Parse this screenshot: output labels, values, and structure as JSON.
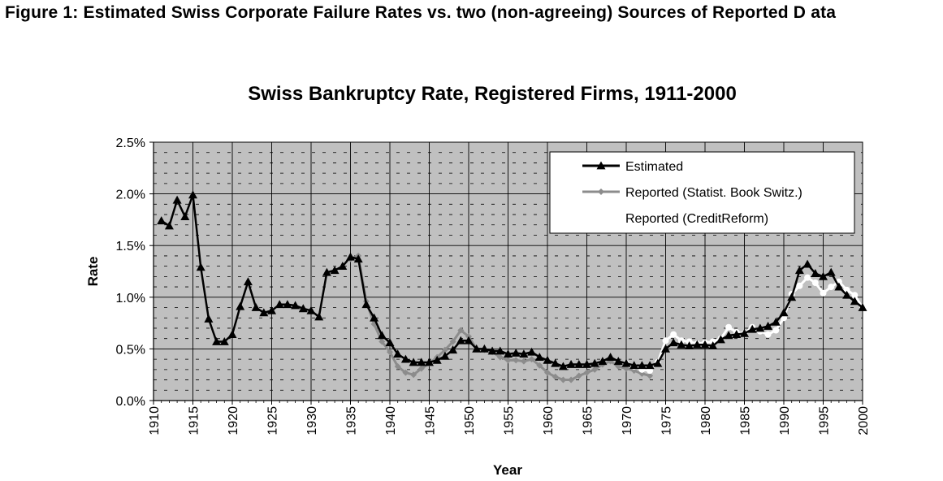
{
  "figure_caption": "Figure 1: Estimated Swiss Corporate Failure Rates vs. two (non-agreeing) Sources of Reported D ata",
  "chart_data": {
    "type": "line",
    "title": "Swiss Bankruptcy Rate, Registered Firms, 1911-2000",
    "xlabel": "Year",
    "ylabel": "Rate",
    "xlim": [
      1910,
      2000
    ],
    "ylim": [
      0,
      0.025
    ],
    "x_ticks": [
      "1910",
      "1915",
      "1920",
      "1925",
      "1930",
      "1935",
      "1940",
      "1945",
      "1950",
      "1955",
      "1960",
      "1965",
      "1970",
      "1975",
      "1980",
      "1985",
      "1990",
      "1995",
      "2000"
    ],
    "y_ticks": [
      "0.0%",
      "0.5%",
      "1.0%",
      "1.5%",
      "2.0%",
      "2.5%"
    ],
    "grid": true,
    "plot_background": "#c0c0c0",
    "legend_position": "top-right",
    "series": [
      {
        "name": "Estimated",
        "color": "#000000",
        "marker": "triangle",
        "x": [
          1911,
          1912,
          1913,
          1914,
          1915,
          1916,
          1917,
          1918,
          1919,
          1920,
          1921,
          1922,
          1923,
          1924,
          1925,
          1926,
          1927,
          1928,
          1929,
          1930,
          1931,
          1932,
          1933,
          1934,
          1935,
          1936,
          1937,
          1938,
          1939,
          1940,
          1941,
          1942,
          1943,
          1944,
          1945,
          1946,
          1947,
          1948,
          1949,
          1950,
          1951,
          1952,
          1953,
          1954,
          1955,
          1956,
          1957,
          1958,
          1959,
          1960,
          1961,
          1962,
          1963,
          1964,
          1965,
          1966,
          1967,
          1968,
          1969,
          1970,
          1971,
          1972,
          1973,
          1974,
          1975,
          1976,
          1977,
          1978,
          1979,
          1980,
          1981,
          1982,
          1983,
          1984,
          1985,
          1986,
          1987,
          1988,
          1989,
          1990,
          1991,
          1992,
          1993,
          1994,
          1995,
          1996,
          1997,
          1998,
          1999,
          2000
        ],
        "values": [
          0.0174,
          0.0169,
          0.0194,
          0.0178,
          0.0199,
          0.0129,
          0.0079,
          0.0057,
          0.0057,
          0.0064,
          0.0091,
          0.0115,
          0.009,
          0.0085,
          0.0087,
          0.0093,
          0.0093,
          0.0092,
          0.0089,
          0.0087,
          0.0081,
          0.0124,
          0.0126,
          0.013,
          0.0139,
          0.0137,
          0.0093,
          0.008,
          0.0063,
          0.0056,
          0.0045,
          0.004,
          0.0037,
          0.0037,
          0.0037,
          0.0039,
          0.0043,
          0.0049,
          0.0058,
          0.0058,
          0.005,
          0.005,
          0.0048,
          0.0048,
          0.0045,
          0.0046,
          0.0045,
          0.0047,
          0.0042,
          0.0039,
          0.0036,
          0.0033,
          0.0035,
          0.0035,
          0.0035,
          0.0036,
          0.0038,
          0.0042,
          0.0038,
          0.0036,
          0.0034,
          0.0034,
          0.0034,
          0.0036,
          0.005,
          0.0056,
          0.0054,
          0.0053,
          0.0054,
          0.0054,
          0.0053,
          0.0059,
          0.0063,
          0.0064,
          0.0065,
          0.0069,
          0.007,
          0.0072,
          0.0076,
          0.0085,
          0.01,
          0.0126,
          0.0132,
          0.0123,
          0.012,
          0.0124,
          0.011,
          0.0102,
          0.0096,
          0.009
        ]
      },
      {
        "name": "Reported (Statist. Book Switz.)",
        "color": "#8c8c8c",
        "marker": "diamond",
        "x": [
          1935,
          1936,
          1937,
          1938,
          1939,
          1940,
          1941,
          1942,
          1943,
          1944,
          1945,
          1946,
          1947,
          1948,
          1949,
          1950,
          1951,
          1952,
          1953,
          1954,
          1955,
          1956,
          1957,
          1958,
          1959,
          1960,
          1961,
          1962,
          1963,
          1964,
          1965,
          1966,
          1967,
          1968,
          1969,
          1970,
          1971,
          1972,
          1973
        ],
        "values": [
          0.0137,
          0.014,
          0.0096,
          0.0074,
          0.0057,
          0.0047,
          0.0033,
          0.0027,
          0.0025,
          0.0031,
          0.0036,
          0.0042,
          0.0049,
          0.0057,
          0.0068,
          0.0062,
          0.005,
          0.0049,
          0.0047,
          0.0042,
          0.0039,
          0.0039,
          0.0038,
          0.004,
          0.0034,
          0.0027,
          0.0023,
          0.002,
          0.002,
          0.0024,
          0.0027,
          0.003,
          0.0035,
          0.0038,
          0.0033,
          0.0031,
          0.0029,
          0.0026,
          0.0024
        ]
      },
      {
        "name": "Reported (CreditReform)",
        "color": "#ffffff",
        "marker": "circle",
        "x": [
          1970,
          1971,
          1972,
          1973,
          1974,
          1975,
          1976,
          1977,
          1978,
          1979,
          1980,
          1981,
          1982,
          1983,
          1984,
          1985,
          1986,
          1987,
          1988,
          1989,
          1990,
          1991,
          1992,
          1993,
          1994,
          1995,
          1996,
          1997,
          1998,
          1999,
          2000
        ],
        "values": [
          0.0036,
          0.0033,
          0.003,
          0.0029,
          0.0037,
          0.0058,
          0.0064,
          0.0058,
          0.0057,
          0.0055,
          0.0056,
          0.0057,
          0.006,
          0.0071,
          0.0066,
          0.0065,
          0.0071,
          0.0067,
          0.0064,
          0.0068,
          0.008,
          0.0103,
          0.0111,
          0.0119,
          0.0114,
          0.0104,
          0.011,
          0.0115,
          0.0107,
          0.0102,
          0.009
        ]
      }
    ]
  }
}
